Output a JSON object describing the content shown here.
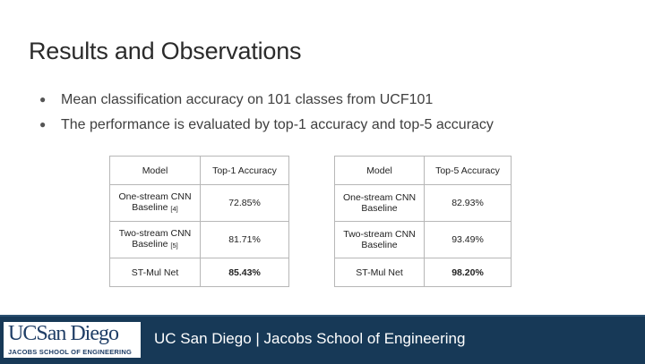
{
  "slide": {
    "title": "Results and Observations",
    "bullets": [
      "Mean classification accuracy on 101 classes from UCF101",
      "The performance is evaluated by top-1 accuracy and top-5 accuracy"
    ]
  },
  "table": {
    "headers": [
      "Model",
      "Top-1 Accuracy",
      "Model",
      "Top-5 Accuracy"
    ],
    "rows": [
      {
        "model1": "One-stream CNN Baseline",
        "ref1": "[4]",
        "top1": "72.85%",
        "model5": "One-stream CNN Baseline",
        "top5": "82.93%"
      },
      {
        "model1": "Two-stream CNN Baseline",
        "ref1": "[5]",
        "top1": "81.71%",
        "model5": "Two-stream CNN Baseline",
        "top5": "93.49%"
      },
      {
        "model1": "ST-Mul Net",
        "ref1": "",
        "top1": "85.43%",
        "model5": "ST-Mul Net",
        "top5": "98.20%"
      }
    ]
  },
  "footer": {
    "logo_main": "UCSan Diego",
    "logo_sub": "JACOBS SCHOOL OF ENGINEERING",
    "text": "UC San Diego | Jacobs School of Engineering",
    "bar_color": "#173957"
  }
}
